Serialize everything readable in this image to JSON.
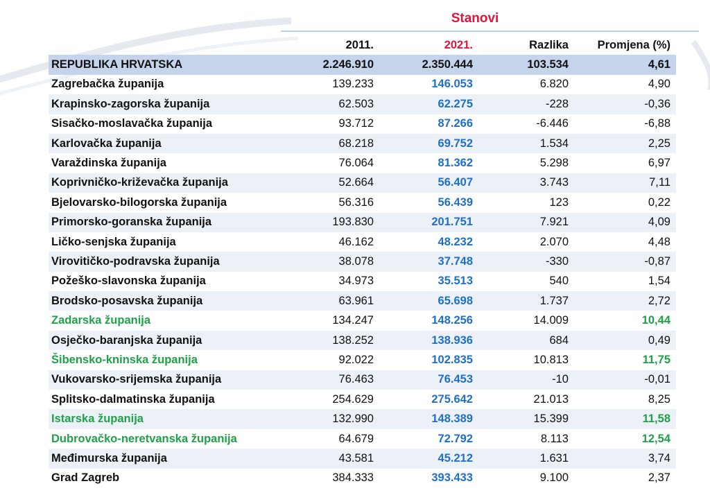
{
  "title": "Stanovi",
  "colors": {
    "title": "#e0153d",
    "highlight_2021": "#1f6fc9",
    "green_highlight": "#1fa14a",
    "total_row_bg": "#c5d4ea",
    "stripe_bg": "#ecf1f8"
  },
  "headers": [
    "",
    "2011.",
    "2021.",
    "Razlika",
    "Promjena (%)"
  ],
  "total": {
    "name": "REPUBLIKA HRVATSKA",
    "y2011": "2.246.910",
    "y2021": "2.350.444",
    "diff": "103.534",
    "pct": "4,61"
  },
  "rows": [
    {
      "name": "Zagrebačka županija",
      "y2011": "139.233",
      "y2021": "146.053",
      "diff": "6.820",
      "pct": "4,90"
    },
    {
      "name": "Krapinsko-zagorska županija",
      "y2011": "62.503",
      "y2021": "62.275",
      "diff": "-228",
      "pct": "-0,36"
    },
    {
      "name": "Sisačko-moslavačka županija",
      "y2011": "93.712",
      "y2021": "87.266",
      "diff": "-6.446",
      "pct": "-6,88"
    },
    {
      "name": "Karlovačka županija",
      "y2011": "68.218",
      "y2021": "69.752",
      "diff": "1.534",
      "pct": "2,25"
    },
    {
      "name": "Varaždinska županija",
      "y2011": "76.064",
      "y2021": "81.362",
      "diff": "5.298",
      "pct": "6,97"
    },
    {
      "name": "Koprivničko-križevačka županija",
      "y2011": "52.664",
      "y2021": "56.407",
      "diff": "3.743",
      "pct": "7,11"
    },
    {
      "name": "Bjelovarsko-bilogorska županija",
      "y2011": "56.316",
      "y2021": "56.439",
      "diff": "123",
      "pct": "0,22"
    },
    {
      "name": "Primorsko-goranska županija",
      "y2011": "193.830",
      "y2021": "201.751",
      "diff": "7.921",
      "pct": "4,09"
    },
    {
      "name": "Ličko-senjska županija",
      "y2011": "46.162",
      "y2021": "48.232",
      "diff": "2.070",
      "pct": "4,48"
    },
    {
      "name": "Virovitičko-podravska županija",
      "y2011": "38.078",
      "y2021": "37.748",
      "diff": "-330",
      "pct": "-0,87"
    },
    {
      "name": "Požeško-slavonska županija",
      "y2011": "34.973",
      "y2021": "35.513",
      "diff": "540",
      "pct": "1,54"
    },
    {
      "name": "Brodsko-posavska županija",
      "y2011": "63.961",
      "y2021": "65.698",
      "diff": "1.737",
      "pct": "2,72"
    },
    {
      "name": "Zadarska županija",
      "y2011": "134.247",
      "y2021": "148.256",
      "diff": "14.009",
      "pct": "10,44",
      "highlight": true
    },
    {
      "name": "Osječko-baranjska županija",
      "y2011": "138.252",
      "y2021": "138.936",
      "diff": "684",
      "pct": "0,49"
    },
    {
      "name": "Šibensko-kninska županija",
      "y2011": "92.022",
      "y2021": "102.835",
      "diff": "10.813",
      "pct": "11,75",
      "highlight": true
    },
    {
      "name": "Vukovarsko-srijemska županija",
      "y2011": "76.463",
      "y2021": "76.453",
      "diff": "-10",
      "pct": "-0,01"
    },
    {
      "name": "Splitsko-dalmatinska županija",
      "y2011": "254.629",
      "y2021": "275.642",
      "diff": "21.013",
      "pct": "8,25"
    },
    {
      "name": "Istarska županija",
      "y2011": "132.990",
      "y2021": "148.389",
      "diff": "15.399",
      "pct": "11,58",
      "highlight": true
    },
    {
      "name": "Dubrovačko-neretvanska županija",
      "y2011": "64.679",
      "y2021": "72.792",
      "diff": "8.113",
      "pct": "12,54",
      "highlight": true
    },
    {
      "name": "Međimurska županija",
      "y2011": "43.581",
      "y2021": "45.212",
      "diff": "1.631",
      "pct": "3,74"
    },
    {
      "name": "Grad Zagreb",
      "y2011": "384.333",
      "y2021": "393.433",
      "diff": "9.100",
      "pct": "2,37"
    }
  ]
}
